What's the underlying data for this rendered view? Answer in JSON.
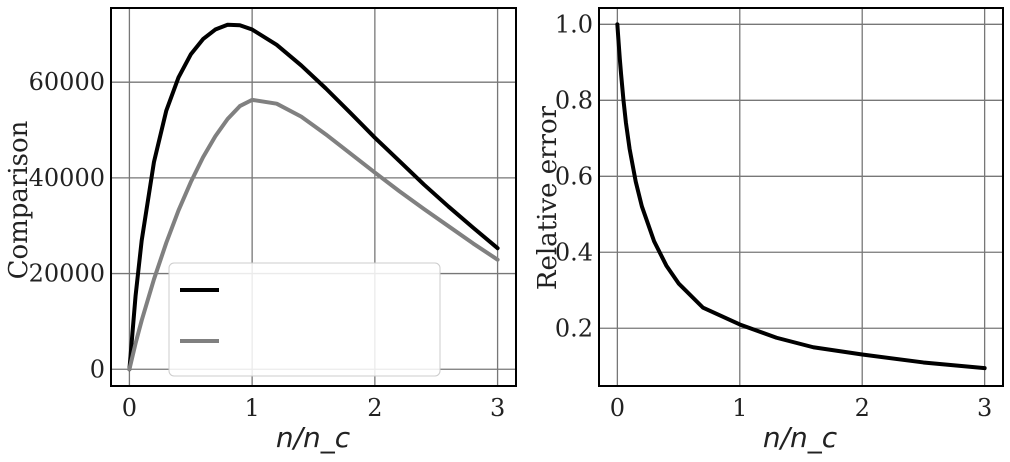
{
  "chart_data": [
    {
      "type": "line",
      "xlabel": "n/n_c",
      "ylabel": "Comparison",
      "xlim": [
        -0.15,
        3.15
      ],
      "ylim": [
        -3500,
        75500
      ],
      "xticks": [
        0,
        1,
        2,
        3
      ],
      "yticks": [
        0,
        20000,
        40000,
        60000
      ],
      "xtick_labels": [
        "0",
        "1",
        "2",
        "3"
      ],
      "ytick_labels": [
        "0",
        "20000",
        "40000",
        "60000"
      ],
      "grid": true,
      "legend": "lower-center",
      "series": [
        {
          "color": "#000000",
          "x": [
            0,
            0.05,
            0.1,
            0.2,
            0.3,
            0.4,
            0.5,
            0.6,
            0.7,
            0.8,
            0.9,
            1.0,
            1.2,
            1.4,
            1.6,
            1.8,
            2.0,
            2.2,
            2.4,
            2.6,
            2.8,
            3.0
          ],
          "y": [
            0,
            15300,
            26900,
            43300,
            54000,
            61000,
            65800,
            69000,
            71000,
            72000,
            71900,
            71000,
            67800,
            63500,
            58700,
            53600,
            48400,
            43500,
            38600,
            34000,
            29600,
            25300
          ]
        },
        {
          "color": "#808080",
          "x": [
            0,
            0.05,
            0.1,
            0.2,
            0.3,
            0.4,
            0.5,
            0.6,
            0.7,
            0.8,
            0.9,
            1.0,
            1.2,
            1.4,
            1.6,
            1.8,
            2.0,
            2.2,
            2.4,
            2.6,
            2.8,
            3.0
          ],
          "y": [
            0,
            5400,
            10200,
            18800,
            26400,
            33200,
            39100,
            44300,
            48700,
            52300,
            55000,
            56300,
            55500,
            52800,
            49100,
            45100,
            41100,
            37200,
            33500,
            29900,
            26300,
            22900
          ]
        }
      ]
    },
    {
      "type": "line",
      "xlabel": "n/n_c",
      "ylabel": "Relative error",
      "xlim": [
        -0.15,
        3.15
      ],
      "ylim": [
        0.048,
        1.043
      ],
      "xticks": [
        0,
        1,
        2,
        3
      ],
      "yticks": [
        0.2,
        0.4,
        0.6,
        0.8,
        1.0
      ],
      "xtick_labels": [
        "0",
        "1",
        "2",
        "3"
      ],
      "ytick_labels": [
        "0.2",
        "0.4",
        "0.6",
        "0.8",
        "1.0"
      ],
      "grid": true,
      "series": [
        {
          "color": "#000000",
          "x": [
            0,
            0.005,
            0.01,
            0.02,
            0.03,
            0.05,
            0.07,
            0.1,
            0.15,
            0.2,
            0.3,
            0.4,
            0.5,
            0.7,
            1.0,
            1.3,
            1.6,
            2.0,
            2.5,
            3.0
          ],
          "y": [
            1.0,
            0.976,
            0.953,
            0.909,
            0.87,
            0.8,
            0.741,
            0.672,
            0.586,
            0.521,
            0.429,
            0.365,
            0.318,
            0.254,
            0.21,
            0.175,
            0.15,
            0.131,
            0.11,
            0.095
          ]
        }
      ]
    }
  ]
}
